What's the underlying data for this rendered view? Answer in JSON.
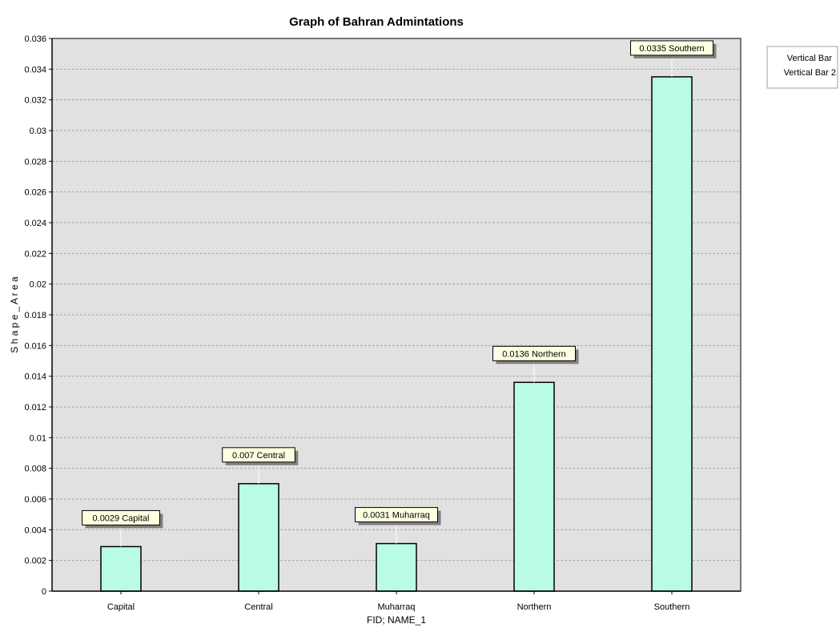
{
  "chart_data": {
    "type": "bar",
    "title": "Graph of Bahran Admintations",
    "xlabel": "FID; NAME_1",
    "ylabel": "S h a p e _ A r e a",
    "categories": [
      "Capital",
      "Central",
      "Muharraq",
      "Northern",
      "Southern"
    ],
    "series": [
      {
        "values": [
          0.0029,
          0.007,
          0.0031,
          0.0136,
          0.0335
        ]
      }
    ],
    "data_labels": [
      "0.0029 Capital",
      "0.007 Central",
      "0.0031 Muharraq",
      "0.0136 Northern",
      "0.0335 Southern"
    ],
    "ylim": [
      0,
      0.036
    ],
    "y_ticks": [
      "0",
      "0.002",
      "0.004",
      "0.006",
      "0.008",
      "0.01",
      "0.012",
      "0.014",
      "0.016",
      "0.018",
      "0.02",
      "0.022",
      "0.024",
      "0.026",
      "0.028",
      "0.03",
      "0.032",
      "0.034",
      "0.036"
    ],
    "y_tick_values": [
      0,
      0.002,
      0.004,
      0.006,
      0.008,
      0.01,
      0.012,
      0.014,
      0.016,
      0.018,
      0.02,
      0.022,
      0.024,
      0.026,
      0.028,
      0.03,
      0.032,
      0.034,
      0.036
    ],
    "grid": true,
    "legend": {
      "position": "top-right",
      "entries": [
        "Vertical Bar",
        "Vertical Bar 2"
      ]
    },
    "colors": {
      "bar_fill": "#b8fce6",
      "plot_background": "#e1e1e1",
      "label_background": "#ffffe0",
      "label_shadow": "#808080",
      "grid": "#a6a6a6"
    }
  }
}
